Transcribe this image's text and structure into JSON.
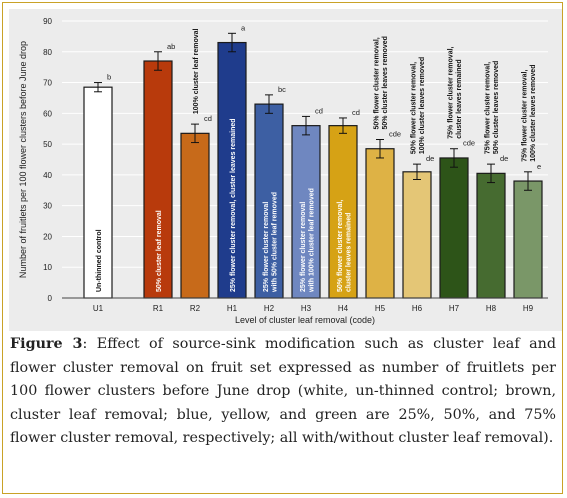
{
  "caption": {
    "label": "Figure 3",
    "text": ": Effect of source-sink modification such as cluster leaf and flower cluster removal on fruit set expressed as number of fruitlets per 100 flower clusters before June drop (white, un-thinned control; brown, cluster leaf removal; blue, yellow, and green are 25%, 50%, and 75% flower cluster removal, respectively; all with/without cluster leaf removal)."
  },
  "chart_data": {
    "type": "bar",
    "xlabel": "Level of cluster leaf removal (code)",
    "ylabel": "Number of fruitlets per 100 flower clusters before June drop",
    "ylim": [
      0,
      90
    ],
    "yticks": [
      0,
      10,
      20,
      30,
      40,
      50,
      60,
      70,
      80,
      90
    ],
    "grid": true,
    "categories": [
      "U1",
      "R1",
      "R2",
      "H1",
      "H2",
      "H3",
      "H4",
      "H5",
      "H6",
      "H7",
      "H8",
      "H9"
    ],
    "values": [
      68.5,
      77,
      53.5,
      83,
      63,
      56,
      56,
      48.5,
      41,
      45.5,
      40.5,
      38
    ],
    "errors": [
      1.5,
      3,
      3,
      3,
      3,
      3,
      2.5,
      3,
      2.5,
      3,
      3,
      3
    ],
    "letters": [
      "b",
      "ab",
      "cd",
      "a",
      "bc",
      "cd",
      "cd",
      "cde",
      "de",
      "cde",
      "de",
      "e"
    ],
    "colors": [
      "#ffffff",
      "#b83a0c",
      "#c76a1a",
      "#1f3c8c",
      "#3d5fa3",
      "#6f87c0",
      "#d6a215",
      "#deb245",
      "#e4c676",
      "#2d5418",
      "#466b30",
      "#7a9768"
    ],
    "bar_labels": [
      [
        "Un-thinned control"
      ],
      [
        "50% cluster leaf removal"
      ],
      [
        "100% cluster leaf removal"
      ],
      [
        "25% flower cluster removal, cluster leaves remained"
      ],
      [
        "25% flower cluster removal",
        "with 50% cluster leaf removed"
      ],
      [
        "25% flower cluster removal",
        "with 100% cluster leaf removed"
      ],
      [
        "50% flower cluster removal,",
        "cluster leaves remained"
      ],
      [
        "50% flower cluster removal,",
        "50% cluster leaves removed"
      ],
      [
        "50% flower cluster removal,",
        "100% cluster leaves removed"
      ],
      [
        "75% flower cluster removal,",
        "cluster leaves remained"
      ],
      [
        "75% flower cluster removal,",
        "50% cluster leaves removed"
      ],
      [
        "75% flower cluster removal,",
        "100% cluster leaves removed"
      ]
    ]
  }
}
